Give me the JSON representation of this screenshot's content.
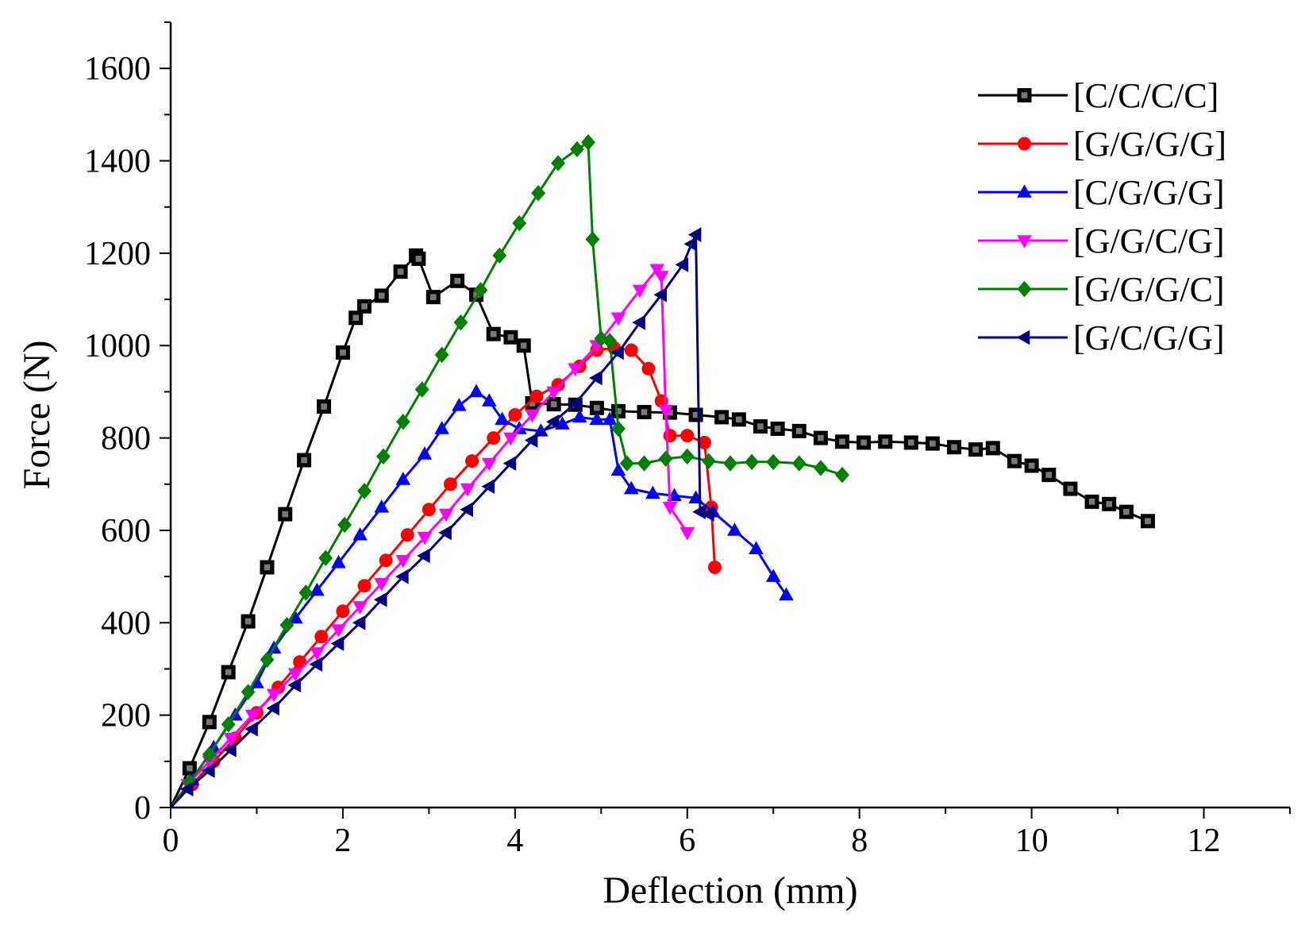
{
  "chart_data": {
    "type": "line",
    "title": "",
    "xlabel": "Deflection (mm)",
    "ylabel": "Force (N)",
    "xlim": [
      0,
      13
    ],
    "ylim": [
      0,
      1700
    ],
    "xticks": [
      0,
      2,
      4,
      6,
      8,
      10,
      12
    ],
    "yticks": [
      0,
      200,
      400,
      600,
      800,
      1000,
      1200,
      1400,
      1600
    ],
    "grid": false,
    "legend_position": "top-right",
    "series": [
      {
        "name": "[C/C/C/C]",
        "color": "#000000",
        "marker": "square",
        "x": [
          0,
          0.22,
          0.45,
          0.67,
          0.9,
          1.12,
          1.33,
          1.55,
          1.78,
          2.0,
          2.15,
          2.25,
          2.45,
          2.67,
          2.85,
          2.88,
          3.05,
          3.33,
          3.55,
          3.75,
          3.95,
          4.1,
          4.2,
          4.45,
          4.7,
          4.95,
          5.2,
          5.5,
          5.8,
          6.1,
          6.4,
          6.6,
          6.85,
          7.05,
          7.3,
          7.55,
          7.8,
          8.05,
          8.3,
          8.6,
          8.85,
          9.1,
          9.35,
          9.55,
          9.8,
          10.0,
          10.2,
          10.45,
          10.7,
          10.9,
          11.1,
          11.35
        ],
        "y": [
          0,
          85,
          185,
          293,
          403,
          520,
          635,
          752,
          868,
          985,
          1060,
          1085,
          1108,
          1160,
          1195,
          1188,
          1105,
          1140,
          1110,
          1025,
          1018,
          1000,
          875,
          873,
          872,
          865,
          858,
          856,
          855,
          850,
          845,
          840,
          825,
          820,
          815,
          800,
          792,
          790,
          792,
          790,
          788,
          780,
          775,
          778,
          750,
          740,
          720,
          690,
          662,
          657,
          640,
          620
        ]
      },
      {
        "name": "[G/G/G/G]",
        "color": "#ff0000",
        "marker": "circle",
        "x": [
          0,
          0.25,
          0.5,
          0.75,
          1.0,
          1.25,
          1.5,
          1.75,
          2.0,
          2.25,
          2.5,
          2.75,
          3.0,
          3.25,
          3.5,
          3.75,
          4.0,
          4.25,
          4.5,
          4.75,
          4.95,
          5.15,
          5.35,
          5.55,
          5.7,
          5.8,
          6.0,
          6.2,
          6.28,
          6.32
        ],
        "y": [
          0,
          50,
          100,
          150,
          205,
          260,
          315,
          370,
          425,
          480,
          535,
          590,
          645,
          700,
          750,
          800,
          850,
          890,
          915,
          955,
          990,
          995,
          990,
          950,
          880,
          805,
          805,
          790,
          650,
          520
        ]
      },
      {
        "name": "[C/G/G/G]",
        "color": "#0000ff",
        "marker": "triangle-up",
        "x": [
          0,
          0.25,
          0.5,
          0.75,
          1.0,
          1.2,
          1.45,
          1.7,
          1.95,
          2.2,
          2.45,
          2.7,
          2.95,
          3.15,
          3.35,
          3.55,
          3.7,
          3.85,
          4.05,
          4.3,
          4.55,
          4.75,
          4.95,
          5.1,
          5.2,
          5.35,
          5.6,
          5.85,
          6.1,
          6.3,
          6.55,
          6.8,
          7.0,
          7.15
        ],
        "y": [
          0,
          60,
          130,
          200,
          270,
          345,
          410,
          470,
          530,
          590,
          650,
          710,
          765,
          820,
          870,
          900,
          880,
          840,
          820,
          815,
          830,
          845,
          840,
          840,
          730,
          690,
          680,
          675,
          670,
          640,
          600,
          560,
          500,
          460
        ]
      },
      {
        "name": "[G/G/C/G]",
        "color": "#ff00ff",
        "marker": "triangle-down",
        "x": [
          0,
          0.2,
          0.45,
          0.7,
          0.95,
          1.2,
          1.45,
          1.7,
          1.95,
          2.2,
          2.45,
          2.7,
          2.95,
          3.2,
          3.45,
          3.7,
          3.95,
          4.2,
          4.45,
          4.7,
          4.95,
          5.2,
          5.45,
          5.65,
          5.7,
          5.75,
          5.8,
          6.0
        ],
        "y": [
          0,
          50,
          100,
          150,
          200,
          245,
          290,
          335,
          385,
          435,
          485,
          535,
          585,
          635,
          690,
          745,
          800,
          850,
          900,
          950,
          1000,
          1060,
          1120,
          1165,
          1150,
          860,
          650,
          595
        ]
      },
      {
        "name": "[G/G/G/C]",
        "color": "#008000",
        "marker": "diamond",
        "x": [
          0,
          0.22,
          0.45,
          0.67,
          0.9,
          1.12,
          1.35,
          1.57,
          1.8,
          2.02,
          2.25,
          2.47,
          2.7,
          2.92,
          3.15,
          3.37,
          3.6,
          3.82,
          4.05,
          4.27,
          4.5,
          4.72,
          4.85,
          4.9,
          5.0,
          5.1,
          5.2,
          5.3,
          5.5,
          5.75,
          6.0,
          6.25,
          6.5,
          6.75,
          7.0,
          7.3,
          7.55,
          7.8
        ],
        "y": [
          0,
          55,
          115,
          180,
          250,
          320,
          395,
          465,
          540,
          612,
          685,
          760,
          835,
          905,
          980,
          1050,
          1120,
          1195,
          1265,
          1330,
          1395,
          1425,
          1440,
          1230,
          1015,
          1010,
          820,
          745,
          745,
          755,
          760,
          750,
          745,
          748,
          748,
          745,
          735,
          720
        ]
      },
      {
        "name": "[G/C/G/G]",
        "color": "#000080",
        "marker": "triangle-left",
        "x": [
          0,
          0.2,
          0.45,
          0.7,
          0.95,
          1.2,
          1.45,
          1.7,
          1.95,
          2.2,
          2.45,
          2.7,
          2.95,
          3.2,
          3.45,
          3.7,
          3.95,
          4.2,
          4.45,
          4.7,
          4.95,
          5.2,
          5.45,
          5.7,
          5.95,
          6.05,
          6.1,
          6.15,
          6.25
        ],
        "y": [
          0,
          40,
          80,
          125,
          170,
          215,
          265,
          310,
          355,
          400,
          450,
          500,
          545,
          595,
          645,
          695,
          745,
          795,
          835,
          875,
          930,
          985,
          1050,
          1110,
          1175,
          1220,
          1240,
          640,
          635
        ]
      }
    ]
  }
}
